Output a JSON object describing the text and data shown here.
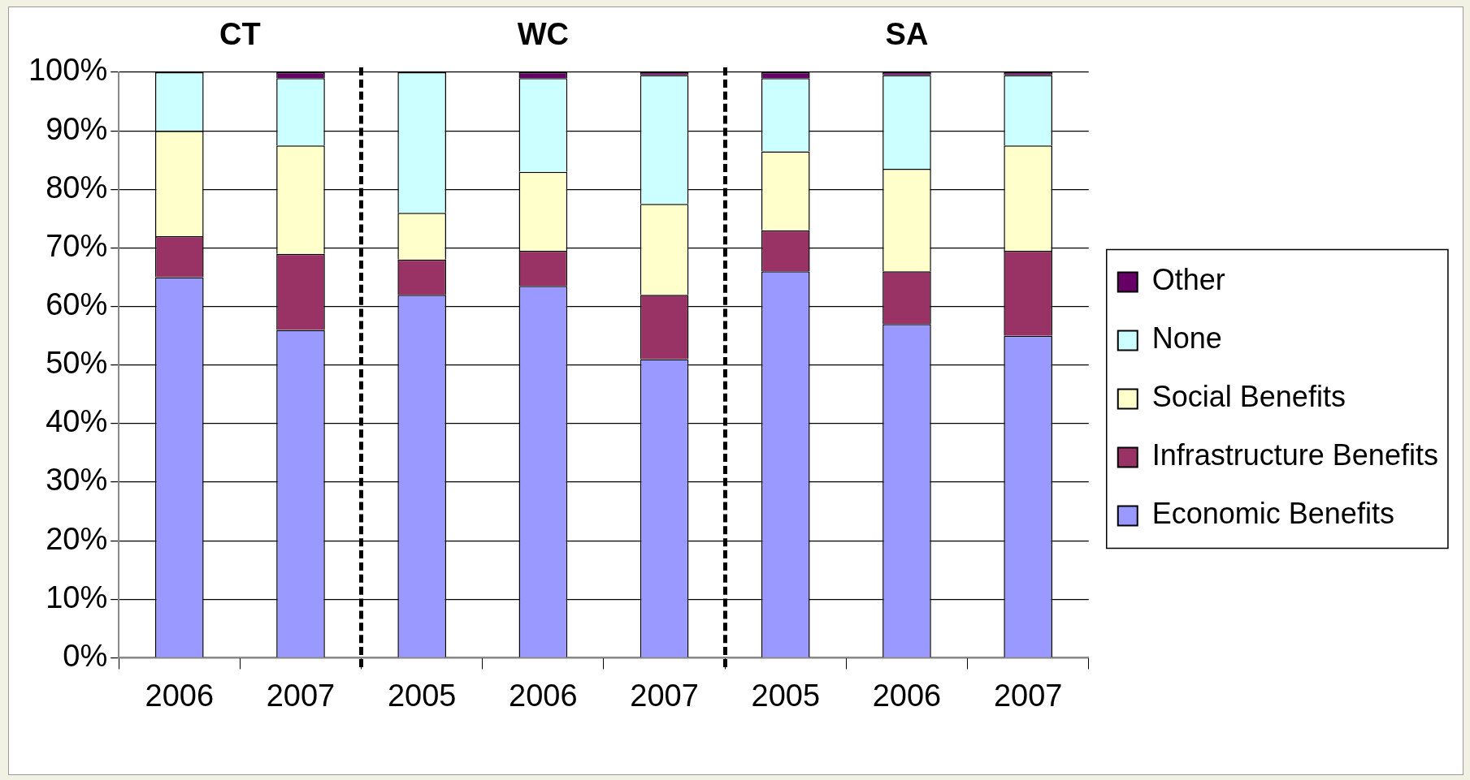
{
  "chart_data": {
    "type": "bar",
    "stacked": true,
    "categories": [
      "2006",
      "2007",
      "2005",
      "2006",
      "2007",
      "2005",
      "2006",
      "2007"
    ],
    "series": [
      {
        "name": "Economic Benefits",
        "color": "#9999ff",
        "values": [
          65,
          56,
          62,
          63.5,
          51,
          66,
          57,
          55
        ]
      },
      {
        "name": "Infrastructure Benefits",
        "color": "#993366",
        "values": [
          7,
          13,
          6,
          6,
          11,
          7,
          9,
          14.5
        ]
      },
      {
        "name": "Social Benefits",
        "color": "#ffffcc",
        "values": [
          18,
          18.5,
          8,
          13.5,
          15.5,
          13.5,
          17.5,
          18
        ]
      },
      {
        "name": "None",
        "color": "#ccffff",
        "values": [
          10,
          11.5,
          24,
          16,
          22,
          12.5,
          16,
          12
        ]
      },
      {
        "name": "Other",
        "color": "#660066",
        "values": [
          0,
          1,
          0,
          1,
          0.5,
          1,
          0.5,
          0.5
        ]
      }
    ],
    "ylim": [
      0,
      100
    ],
    "yticks": [
      {
        "value": 0,
        "label": "0%"
      },
      {
        "value": 10,
        "label": "10%"
      },
      {
        "value": 20,
        "label": "20%"
      },
      {
        "value": 30,
        "label": "30%"
      },
      {
        "value": 40,
        "label": "40%"
      },
      {
        "value": 50,
        "label": "50%"
      },
      {
        "value": 60,
        "label": "60%"
      },
      {
        "value": 70,
        "label": "70%"
      },
      {
        "value": 80,
        "label": "80%"
      },
      {
        "value": 90,
        "label": "90%"
      },
      {
        "value": 100,
        "label": "100%"
      }
    ],
    "annotations": [
      "CT",
      "WC",
      "SA"
    ],
    "grid": "y",
    "legend": "right"
  }
}
